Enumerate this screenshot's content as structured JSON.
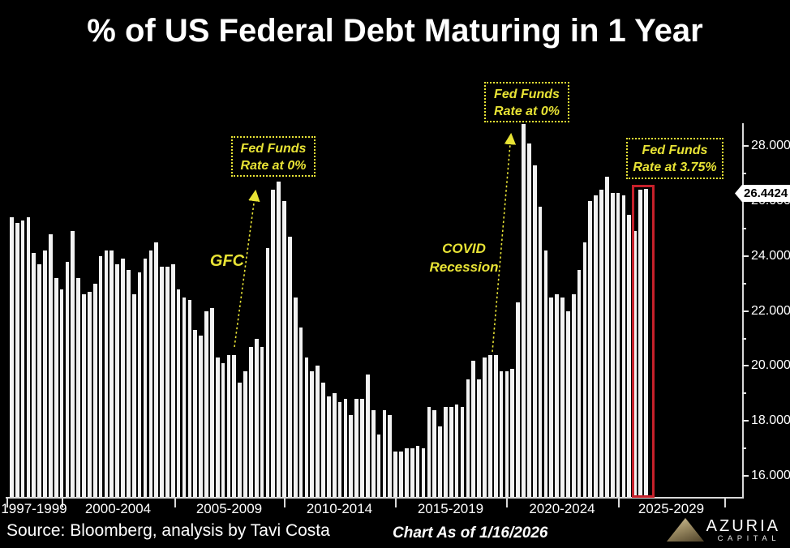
{
  "title": "% of US Federal Debt Maturing in 1 Year",
  "colors": {
    "background": "#000000",
    "bar": "#f2f2f2",
    "annotation_yellow": "#e8e335",
    "highlight_red": "#c5202a",
    "axis": "#d9d9d9",
    "text": "#ffffff",
    "badge_bg": "#ffffff",
    "badge_text": "#000000",
    "logo_gold": "#9a8a62"
  },
  "y_axis": {
    "tick_labels": [
      "28.0000",
      "26.0000",
      "24.0000",
      "22.0000",
      "20.0000",
      "18.0000",
      "16.0000"
    ],
    "tick_values": [
      28,
      26,
      24,
      22,
      20,
      18,
      16
    ],
    "minor_tick_values": [
      27,
      25,
      23,
      21,
      19,
      17
    ]
  },
  "x_axis": {
    "group_labels": [
      "1997-1999",
      "2000-2004",
      "2005-2009",
      "2010-2014",
      "2015-2019",
      "2020-2024",
      "2025-2029"
    ]
  },
  "annotations": {
    "fed_funds_zero_left": {
      "line1": "Fed Funds",
      "line2": "Rate at 0%"
    },
    "fed_funds_zero_mid": {
      "line1": "Fed Funds",
      "line2": "Rate at 0%"
    },
    "fed_funds_375": {
      "line1": "Fed Funds",
      "line2": "Rate at 3.75%"
    },
    "gfc_label": "GFC",
    "covid_label": {
      "line1": "COVID",
      "line2": "Recession"
    },
    "last_value_badge": "26.4424"
  },
  "footer": {
    "source": "Source: Bloomberg, analysis by Tavi Costa",
    "as_of": "Chart As of 1/16/2026",
    "brand": "AZURIA",
    "brand_sub": "CAPITAL"
  },
  "chart_data": {
    "type": "bar",
    "title": "% of US Federal Debt Maturing in 1 Year",
    "frequency": "quarterly",
    "x_start": "1997-Q3",
    "x_end": "2026-Q1",
    "x_group_labels": [
      "1997-1999",
      "2000-2004",
      "2005-2009",
      "2010-2014",
      "2015-2019",
      "2020-2024",
      "2025-2029"
    ],
    "ylim": [
      15.2,
      29.0
    ],
    "y_ticks": [
      16,
      18,
      20,
      22,
      24,
      26,
      28
    ],
    "grid": false,
    "legend": false,
    "values": [
      25.4,
      25.2,
      25.3,
      25.4,
      24.1,
      23.7,
      24.2,
      24.8,
      23.2,
      22.8,
      23.8,
      24.9,
      23.2,
      22.6,
      22.7,
      23.0,
      24.0,
      24.2,
      24.2,
      23.7,
      23.9,
      23.5,
      22.6,
      23.4,
      23.9,
      24.2,
      24.5,
      23.6,
      23.6,
      23.7,
      22.8,
      22.5,
      22.4,
      21.3,
      21.1,
      22.0,
      22.1,
      20.3,
      20.1,
      20.4,
      20.4,
      19.4,
      19.8,
      20.7,
      21.0,
      20.7,
      24.3,
      26.4,
      26.7,
      26.0,
      24.7,
      22.5,
      21.4,
      20.3,
      19.8,
      20.0,
      19.4,
      18.9,
      19.0,
      18.7,
      18.8,
      18.2,
      18.8,
      18.8,
      19.7,
      18.4,
      17.5,
      18.4,
      18.2,
      16.9,
      16.9,
      17.0,
      17.0,
      17.1,
      17.0,
      18.5,
      18.4,
      17.8,
      18.5,
      18.5,
      18.6,
      18.5,
      19.5,
      20.2,
      19.5,
      20.3,
      20.4,
      20.4,
      19.8,
      19.8,
      19.9,
      22.3,
      28.8,
      28.1,
      27.3,
      25.8,
      24.2,
      22.5,
      22.6,
      22.5,
      22.0,
      22.6,
      23.5,
      24.5,
      26.0,
      26.2,
      26.4,
      26.9,
      26.3,
      26.3,
      26.2,
      25.5,
      24.9,
      26.42,
      26.4424
    ],
    "last_value": 26.4424,
    "highlight_last_n_bars": 2,
    "annotations": [
      {
        "text": "Fed Funds Rate at 0%",
        "points_to": "2008-2009 GFC peak"
      },
      {
        "text": "GFC",
        "points_to": "2008-2009 GFC peak"
      },
      {
        "text": "Fed Funds Rate at 0%",
        "points_to": "2020 COVID peak"
      },
      {
        "text": "COVID Recession",
        "points_to": "2020 COVID peak"
      },
      {
        "text": "Fed Funds Rate at 3.75%",
        "points_to": "latest bars highlighted in red box"
      },
      {
        "text": "26.4424",
        "points_to": "last bar value label on y-axis"
      }
    ]
  }
}
